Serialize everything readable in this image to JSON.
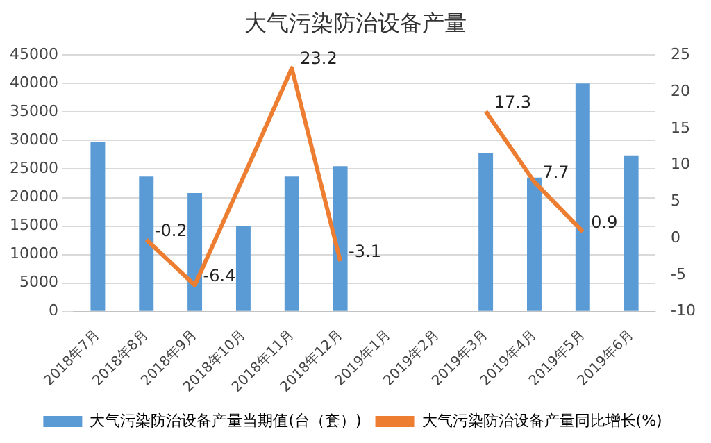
{
  "chart_data": {
    "type": "bar",
    "title": "大气污染防治设备产量",
    "categories": [
      "2018年7月",
      "2018年8月",
      "2018年9月",
      "2018年10月",
      "2018年11月",
      "2018年12月",
      "2019年1月",
      "2019年2月",
      "2019年3月",
      "2019年4月",
      "2019年5月",
      "2019年6月"
    ],
    "series": [
      {
        "name": "大气污染防治设备产量当期值(台（套）)",
        "color": "#5b9bd5",
        "values": [
          29800,
          23700,
          20800,
          15000,
          23700,
          25500,
          null,
          null,
          27800,
          23500,
          40000,
          27400
        ]
      },
      {
        "name": "大气污染防治设备产量同比增长(%)",
        "type": "line",
        "axis": "y2",
        "color": "#ed7d31",
        "values": [
          null,
          -0.2,
          -6.4,
          8.3,
          23.2,
          -3.1,
          null,
          null,
          17.3,
          7.7,
          0.9,
          null
        ],
        "value_labels": [
          null,
          "-0.2",
          "-6.4",
          null,
          "23.2",
          "-3.1",
          null,
          null,
          "17.3",
          "7.7",
          "0.9",
          null
        ]
      }
    ],
    "ylim": [
      0,
      45000
    ],
    "yticks": [
      0,
      5000,
      10000,
      15000,
      20000,
      25000,
      30000,
      35000,
      40000,
      45000
    ],
    "y2lim": [
      -10,
      25
    ],
    "y2ticks": [
      -10,
      -5,
      0,
      5,
      10,
      15,
      20,
      25
    ],
    "grid": "y",
    "legend": "bottom",
    "marker": "none"
  }
}
